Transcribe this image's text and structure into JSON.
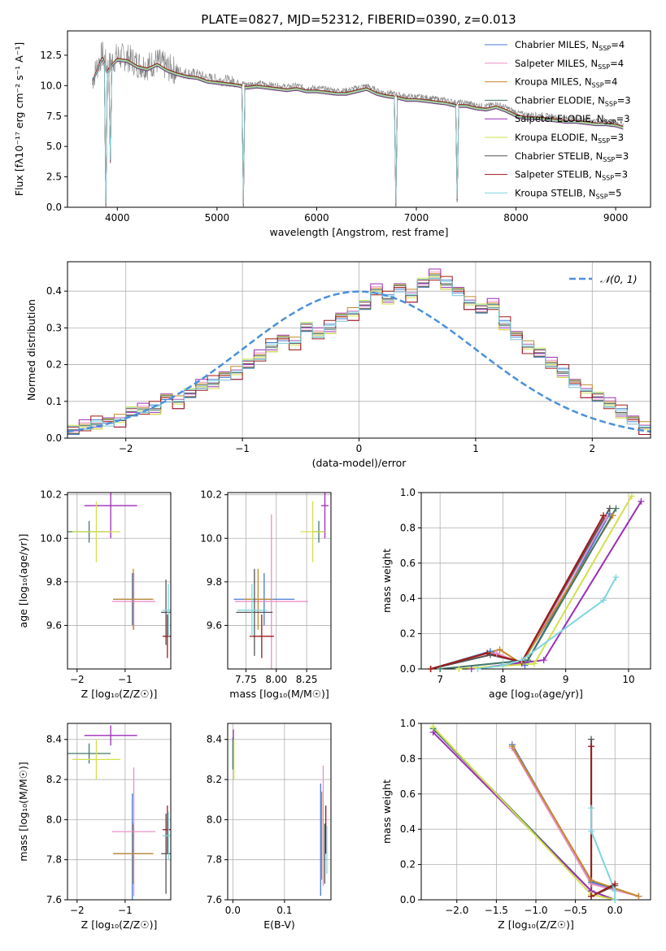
{
  "figure": {
    "title": "PLATE=0827, MJD=52312, FIBERID=0390, z=0.013"
  },
  "series_styles": [
    {
      "name": "Chabrier MILES",
      "nssp": "4",
      "color": "#4878cf"
    },
    {
      "name": "Salpeter MILES",
      "nssp": "4",
      "color": "#ea90c8"
    },
    {
      "name": "Kroupa MILES",
      "nssp": "4",
      "color": "#c58a2a"
    },
    {
      "name": "Chabrier ELODIE",
      "nssp": "3",
      "color": "#44786a"
    },
    {
      "name": "Salpeter ELODIE",
      "nssp": "3",
      "color": "#9c2db8"
    },
    {
      "name": "Kroupa ELODIE",
      "nssp": "3",
      "color": "#d2e04a"
    },
    {
      "name": "Chabrier STELIB",
      "nssp": "3",
      "color": "#555555"
    },
    {
      "name": "Salpeter STELIB",
      "nssp": "3",
      "color": "#a01818"
    },
    {
      "name": "Kroupa STELIB",
      "nssp": "5",
      "color": "#7ed6df"
    }
  ],
  "chart_data": [
    {
      "id": "spectrum",
      "type": "line",
      "xlabel": "wavelength [Angstrom, rest frame]",
      "ylabel": "Flux [fλ10⁻¹⁷ erg cm⁻² s⁻¹ A⁻¹]",
      "xlim": [
        3500,
        9350
      ],
      "ylim": [
        0,
        14.5
      ],
      "xticks": [
        4000,
        5000,
        6000,
        7000,
        8000,
        9000
      ],
      "yticks": [
        0.0,
        2.5,
        5.0,
        7.5,
        10.0,
        12.5
      ],
      "data_color": "#808080",
      "data_x": [
        3750,
        3800,
        3850,
        3900,
        3950,
        4000,
        4100,
        4200,
        4300,
        4400,
        4500,
        4600,
        4700,
        4800,
        4900,
        5000,
        5100,
        5200,
        5300,
        5400,
        5500,
        5600,
        5700,
        5800,
        5900,
        6000,
        6100,
        6200,
        6300,
        6400,
        6500,
        6600,
        6700,
        6800,
        6900,
        7000,
        7100,
        7200,
        7300,
        7400,
        7500,
        7600,
        7700,
        7800,
        7900,
        8000,
        8100,
        8200,
        8300,
        8400,
        8500,
        8600,
        8700,
        8800,
        8900,
        9000,
        9080
      ],
      "data_y": [
        10.5,
        11.6,
        12.6,
        11.4,
        12.0,
        12.4,
        12.3,
        11.8,
        11.6,
        12.0,
        11.5,
        11.2,
        11.0,
        10.9,
        10.6,
        10.5,
        10.4,
        10.3,
        10.1,
        10.2,
        10.1,
        10.0,
        9.9,
        10.0,
        9.8,
        9.8,
        9.7,
        9.6,
        9.6,
        9.8,
        10.0,
        9.6,
        9.4,
        9.3,
        9.1,
        9.1,
        9.0,
        8.9,
        8.8,
        8.6,
        8.6,
        8.4,
        8.3,
        8.5,
        8.2,
        7.8,
        7.6,
        7.6,
        7.5,
        7.4,
        7.3,
        7.3,
        7.2,
        7.1,
        7.1,
        7.0,
        6.8
      ],
      "model_shifts": [
        0.1,
        -0.05,
        0.0,
        0.12,
        -0.1,
        0.05,
        -0.08,
        0.15,
        0.0
      ],
      "absorption_features": [
        {
          "x": 3890,
          "depth_to": 0.0
        },
        {
          "x": 3934,
          "depth_to": 3.6
        },
        {
          "x": 5270,
          "depth_to": 0.0
        },
        {
          "x": 6800,
          "depth_to": 0.0
        },
        {
          "x": 7410,
          "depth_to": 0.4
        }
      ]
    },
    {
      "id": "residuals",
      "type": "line",
      "xlabel": "(data-model)/error",
      "ylabel": "Normed distribution",
      "xlim": [
        -2.5,
        2.5
      ],
      "ylim": [
        0,
        0.48
      ],
      "xticks": [
        -2,
        -1,
        0,
        1,
        2
      ],
      "yticks": [
        0.0,
        0.1,
        0.2,
        0.3,
        0.4
      ],
      "bin_width": 0.1,
      "bin_start": -2.5,
      "curve_label": "𝒩(0, 1)",
      "curve_color": "#4a90d9",
      "hist_base": [
        0.02,
        0.03,
        0.04,
        0.045,
        0.05,
        0.07,
        0.075,
        0.08,
        0.11,
        0.1,
        0.12,
        0.14,
        0.15,
        0.17,
        0.18,
        0.2,
        0.22,
        0.25,
        0.27,
        0.26,
        0.3,
        0.28,
        0.3,
        0.33,
        0.34,
        0.36,
        0.4,
        0.38,
        0.41,
        0.39,
        0.42,
        0.44,
        0.42,
        0.4,
        0.37,
        0.35,
        0.36,
        0.31,
        0.28,
        0.25,
        0.23,
        0.2,
        0.18,
        0.15,
        0.13,
        0.11,
        0.09,
        0.07,
        0.05,
        0.03
      ],
      "series_jitter": [
        0.01,
        -0.012,
        0.015,
        -0.008,
        0.02,
        -0.015,
        0.005,
        -0.02,
        0.012
      ]
    },
    {
      "id": "age-vs-Z",
      "type": "scatter",
      "xlabel": "Z [log₁₀(Z/Z☉)]",
      "ylabel": "age  [log₁₀(age/yr)]",
      "xlim": [
        -2.2,
        -0.05
      ],
      "ylim": [
        9.4,
        10.21
      ],
      "xticks": [
        -2,
        -1
      ],
      "yticks": [
        9.6,
        9.8,
        10.0,
        10.2
      ],
      "points": [
        {
          "s": 0,
          "x": -0.85,
          "y": 9.72,
          "xerr": 0.4,
          "yerr": 0.12
        },
        {
          "s": 1,
          "x": -0.82,
          "y": 9.71,
          "xerr": 0.45,
          "yerr": 0.13
        },
        {
          "s": 2,
          "x": -0.83,
          "y": 9.72,
          "xerr": 0.42,
          "yerr": 0.14
        },
        {
          "s": 3,
          "x": -1.75,
          "y": 10.03,
          "xerr": 0.45,
          "yerr": 0.05
        },
        {
          "s": 4,
          "x": -1.3,
          "y": 10.15,
          "xerr": 0.55,
          "yerr": 0.15
        },
        {
          "s": 5,
          "x": -1.6,
          "y": 10.03,
          "xerr": 0.5,
          "yerr": 0.14
        },
        {
          "s": 6,
          "x": -0.15,
          "y": 9.66,
          "xerr": 0.1,
          "yerr": 0.15
        },
        {
          "s": 7,
          "x": -0.12,
          "y": 9.55,
          "xerr": 0.1,
          "yerr": 0.1
        },
        {
          "s": 8,
          "x": -0.1,
          "y": 9.67,
          "xerr": 0.12,
          "yerr": 0.12
        }
      ]
    },
    {
      "id": "age-vs-mass",
      "type": "scatter",
      "xlabel": "mass [log₁₀(M/M☉)]",
      "ylabel": "",
      "xlim": [
        7.6,
        8.45
      ],
      "ylim": [
        9.4,
        10.21
      ],
      "xticks": [
        7.75,
        8.0,
        8.25
      ],
      "yticks": [
        9.6,
        9.8,
        10.0,
        10.2
      ],
      "points": [
        {
          "s": 0,
          "x": 7.9,
          "y": 9.72,
          "xerr": 0.25,
          "yerr": 0.12
        },
        {
          "s": 1,
          "x": 7.96,
          "y": 9.71,
          "xerr": 0.3,
          "yerr": 0.4
        },
        {
          "s": 2,
          "x": 7.85,
          "y": 9.72,
          "xerr": 0.12,
          "yerr": 0.14
        },
        {
          "s": 3,
          "x": 8.35,
          "y": 10.03,
          "xerr": 0.05,
          "yerr": 0.05
        },
        {
          "s": 4,
          "x": 8.4,
          "y": 10.15,
          "xerr": 0.03,
          "yerr": 0.15
        },
        {
          "s": 5,
          "x": 8.3,
          "y": 10.03,
          "xerr": 0.1,
          "yerr": 0.14
        },
        {
          "s": 6,
          "x": 7.82,
          "y": 9.66,
          "xerr": 0.15,
          "yerr": 0.2
        },
        {
          "s": 7,
          "x": 7.88,
          "y": 9.55,
          "xerr": 0.1,
          "yerr": 0.1
        },
        {
          "s": 8,
          "x": 7.8,
          "y": 9.67,
          "xerr": 0.12,
          "yerr": 0.12
        }
      ]
    },
    {
      "id": "mass-weight-vs-age",
      "type": "line",
      "xlabel": "age  [log₁₀(age/yr)]",
      "ylabel": "mass weight",
      "xlim": [
        6.7,
        10.35
      ],
      "ylim": [
        0,
        1.0
      ],
      "xticks": [
        7,
        8,
        9,
        10
      ],
      "yticks": [
        0.0,
        0.2,
        0.4,
        0.6,
        0.8,
        1.0
      ],
      "series": [
        {
          "s": 0,
          "x": [
            6.85,
            7.8,
            8.35,
            9.7
          ],
          "y": [
            0.0,
            0.1,
            0.02,
            0.88
          ]
        },
        {
          "s": 1,
          "x": [
            6.85,
            7.9,
            8.3,
            9.65
          ],
          "y": [
            0.0,
            0.09,
            0.03,
            0.86
          ]
        },
        {
          "s": 2,
          "x": [
            6.85,
            7.95,
            8.3,
            9.75
          ],
          "y": [
            0.0,
            0.11,
            0.03,
            0.87
          ]
        },
        {
          "s": 3,
          "x": [
            7.0,
            8.4,
            9.8
          ],
          "y": [
            0.0,
            0.05,
            0.91
          ]
        },
        {
          "s": 4,
          "x": [
            7.5,
            8.65,
            10.2
          ],
          "y": [
            0.0,
            0.05,
            0.95
          ]
        },
        {
          "s": 5,
          "x": [
            7.3,
            8.5,
            10.05
          ],
          "y": [
            0.0,
            0.03,
            0.98
          ]
        },
        {
          "s": 6,
          "x": [
            6.85,
            7.8,
            8.3,
            9.7
          ],
          "y": [
            0.0,
            0.08,
            0.04,
            0.91
          ]
        },
        {
          "s": 7,
          "x": [
            6.85,
            7.75,
            8.3,
            9.6
          ],
          "y": [
            0.0,
            0.09,
            0.04,
            0.87
          ]
        },
        {
          "s": 8,
          "x": [
            7.6,
            8.0,
            8.3,
            9.6,
            9.8
          ],
          "y": [
            0.0,
            0.02,
            0.05,
            0.39,
            0.52
          ]
        }
      ]
    },
    {
      "id": "mass-vs-Z",
      "type": "scatter",
      "xlabel": "Z [log₁₀(Z/Z☉)]",
      "ylabel": "mass [log₁₀(M/M☉)]",
      "xlim": [
        -2.2,
        -0.05
      ],
      "ylim": [
        7.6,
        8.48
      ],
      "xticks": [
        -2,
        -1
      ],
      "yticks": [
        7.6,
        7.8,
        8.0,
        8.2,
        8.4
      ],
      "points": [
        {
          "s": 0,
          "x": -0.85,
          "y": 7.83,
          "xerr": 0.4,
          "yerr": 0.3
        },
        {
          "s": 1,
          "x": -0.82,
          "y": 7.94,
          "xerr": 0.45,
          "yerr": 0.32
        },
        {
          "s": 2,
          "x": -0.83,
          "y": 7.83,
          "xerr": 0.42,
          "yerr": 0.15
        },
        {
          "s": 3,
          "x": -1.75,
          "y": 8.33,
          "xerr": 0.45,
          "yerr": 0.05
        },
        {
          "s": 4,
          "x": -1.3,
          "y": 8.42,
          "xerr": 0.55,
          "yerr": 0.05
        },
        {
          "s": 5,
          "x": -1.6,
          "y": 8.3,
          "xerr": 0.5,
          "yerr": 0.1
        },
        {
          "s": 6,
          "x": -0.15,
          "y": 7.83,
          "xerr": 0.1,
          "yerr": 0.2
        },
        {
          "s": 7,
          "x": -0.12,
          "y": 7.95,
          "xerr": 0.1,
          "yerr": 0.12
        },
        {
          "s": 8,
          "x": -0.1,
          "y": 7.92,
          "xerr": 0.12,
          "yerr": 0.12
        }
      ]
    },
    {
      "id": "mass-vs-EBV",
      "type": "scatter",
      "xlabel": "E(B-V)",
      "ylabel": "",
      "xlim": [
        -0.01,
        0.19
      ],
      "ylim": [
        7.6,
        8.48
      ],
      "xticks": [
        0.0,
        0.1
      ],
      "yticks": [
        7.6,
        7.8,
        8.0,
        8.2,
        8.4
      ],
      "points": [
        {
          "s": 0,
          "x": 0.17,
          "y": 7.9,
          "xerr": 0,
          "yerr": 0.28
        },
        {
          "s": 1,
          "x": 0.175,
          "y": 7.97,
          "xerr": 0,
          "yerr": 0.3
        },
        {
          "s": 2,
          "x": 0.172,
          "y": 7.92,
          "xerr": 0,
          "yerr": 0.22
        },
        {
          "s": 3,
          "x": 0.0,
          "y": 8.33,
          "xerr": 0,
          "yerr": 0.08
        },
        {
          "s": 4,
          "x": 0.001,
          "y": 8.42,
          "xerr": 0,
          "yerr": 0.03
        },
        {
          "s": 5,
          "x": 0.002,
          "y": 8.3,
          "xerr": 0,
          "yerr": 0.1
        },
        {
          "s": 6,
          "x": 0.178,
          "y": 7.83,
          "xerr": 0,
          "yerr": 0.15
        },
        {
          "s": 7,
          "x": 0.18,
          "y": 7.95,
          "xerr": 0,
          "yerr": 0.12
        },
        {
          "s": 8,
          "x": 0.182,
          "y": 7.85,
          "xerr": 0,
          "yerr": 0.12
        }
      ]
    },
    {
      "id": "mass-weight-vs-Z",
      "type": "line",
      "xlabel": "Z [log₁₀(Z/Z☉)]",
      "ylabel": "mass weight",
      "xlim": [
        -2.45,
        0.45
      ],
      "ylim": [
        0,
        1.0
      ],
      "xticks": [
        -2.0,
        -1.5,
        -1.0,
        -0.5,
        0.0
      ],
      "xtick_labels": [
        "−2.0",
        "−1.5",
        "−1.0",
        "−0.5",
        "0.0"
      ],
      "yticks": [
        0.0,
        0.2,
        0.4,
        0.6,
        0.8,
        1.0
      ],
      "series": [
        {
          "s": 0,
          "x": [
            -1.3,
            -0.3,
            0.3
          ],
          "y": [
            0.88,
            0.1,
            0.02
          ]
        },
        {
          "s": 1,
          "x": [
            -1.3,
            -0.3,
            0.3
          ],
          "y": [
            0.86,
            0.09,
            0.02
          ]
        },
        {
          "s": 2,
          "x": [
            -1.3,
            -0.3,
            0.3
          ],
          "y": [
            0.87,
            0.11,
            0.02
          ]
        },
        {
          "s": 3,
          "x": [
            -2.3,
            -0.3,
            0.0
          ],
          "y": [
            0.97,
            0.05,
            0.0
          ]
        },
        {
          "s": 4,
          "x": [
            -2.3,
            -0.3,
            0.0
          ],
          "y": [
            0.95,
            0.05,
            0.0
          ]
        },
        {
          "s": 5,
          "x": [
            -2.3,
            -0.3,
            0.0
          ],
          "y": [
            0.98,
            0.03,
            0.0
          ]
        },
        {
          "s": 6,
          "x": [
            -0.3,
            -0.3,
            0.0
          ],
          "y": [
            0.91,
            0.02,
            0.08
          ]
        },
        {
          "s": 7,
          "x": [
            -0.3,
            -0.3,
            0.0
          ],
          "y": [
            0.87,
            0.02,
            0.09
          ]
        },
        {
          "s": 8,
          "x": [
            -0.3,
            -0.3,
            0.0,
            0.0
          ],
          "y": [
            0.52,
            0.39,
            0.05,
            0.0
          ]
        }
      ]
    }
  ]
}
